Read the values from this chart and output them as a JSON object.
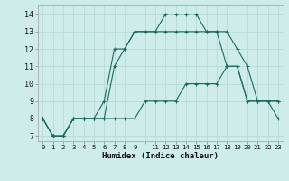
{
  "xlabel": "Humidex (Indice chaleur)",
  "background_color": "#ceecea",
  "line_color": "#1a6b5e",
  "grid_color": "#b8dbd8",
  "xlim": [
    -0.5,
    23.5
  ],
  "ylim": [
    6.7,
    14.5
  ],
  "yticks": [
    7,
    8,
    9,
    10,
    11,
    12,
    13,
    14
  ],
  "xtick_labels": [
    "0",
    "1",
    "2",
    "3",
    "4",
    "5",
    "6",
    "7",
    "8",
    "9",
    "",
    "11",
    "12",
    "13",
    "14",
    "15",
    "16",
    "17",
    "18",
    "19",
    "20",
    "21",
    "22",
    "23"
  ],
  "xtick_positions": [
    0,
    1,
    2,
    3,
    4,
    5,
    6,
    7,
    8,
    9,
    10,
    11,
    12,
    13,
    14,
    15,
    16,
    17,
    18,
    19,
    20,
    21,
    22,
    23
  ],
  "series1_x": [
    0,
    1,
    2,
    3,
    4,
    5,
    6,
    7,
    8,
    9,
    11,
    12,
    13,
    14,
    15,
    16,
    17,
    18,
    19,
    20,
    21,
    22,
    23
  ],
  "series1_y": [
    8,
    7,
    7,
    8,
    8,
    8,
    8,
    11,
    12,
    13,
    13,
    14,
    14,
    14,
    14,
    13,
    13,
    13,
    12,
    11,
    9,
    9,
    9
  ],
  "series2_x": [
    0,
    1,
    2,
    3,
    4,
    5,
    6,
    7,
    8,
    9,
    10,
    11,
    12,
    13,
    14,
    15,
    16,
    17,
    18,
    19,
    20,
    21,
    22,
    23
  ],
  "series2_y": [
    8,
    7,
    7,
    8,
    8,
    8,
    9,
    12,
    12,
    13,
    13,
    13,
    13,
    13,
    13,
    13,
    13,
    13,
    11,
    11,
    9,
    9,
    9,
    8
  ],
  "series3_x": [
    0,
    1,
    2,
    3,
    4,
    5,
    6,
    7,
    8,
    9,
    10,
    11,
    12,
    13,
    14,
    15,
    16,
    17,
    18,
    19,
    20,
    21,
    22,
    23
  ],
  "series3_y": [
    8,
    7,
    7,
    8,
    8,
    8,
    8,
    8,
    8,
    8,
    9,
    9,
    9,
    9,
    10,
    10,
    10,
    10,
    11,
    11,
    9,
    9,
    9,
    9
  ]
}
